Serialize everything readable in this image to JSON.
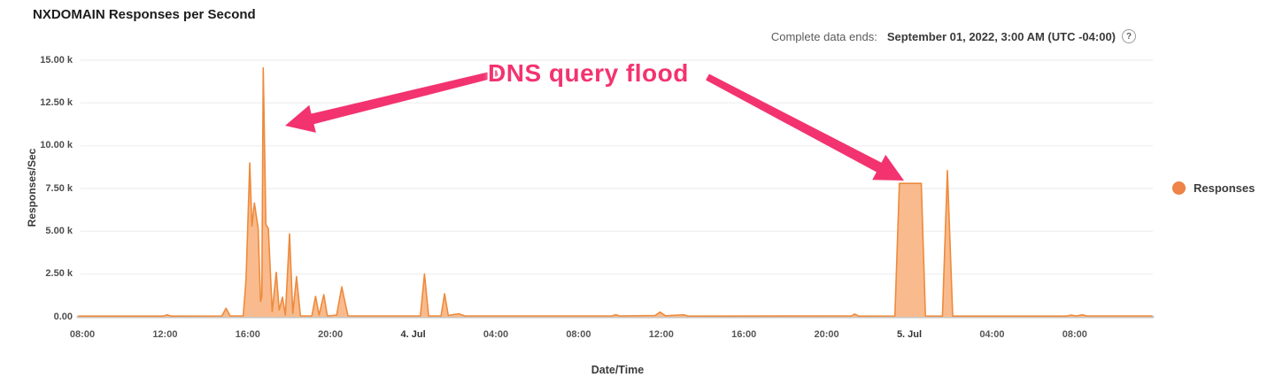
{
  "title": "NXDOMAIN Responses per Second",
  "header": {
    "complete_label": "Complete data ends:",
    "complete_value": "September 01, 2022, 3:00 AM (UTC -04:00)",
    "help_icon": "?"
  },
  "legend": {
    "label": "Responses",
    "color": "#ef8449"
  },
  "annotation": {
    "text": "DNS query flood",
    "color": "#f3336f",
    "arrows": [
      {
        "name": "left",
        "from": [
          562,
          83
        ],
        "to": [
          322,
          142
        ]
      },
      {
        "name": "right",
        "from": [
          799,
          87
        ],
        "to": [
          1021,
          204
        ]
      }
    ]
  },
  "chart_data": {
    "type": "area",
    "title": "NXDOMAIN Responses per Second",
    "xlabel": "Date/Time",
    "ylabel": "Responses/Sec",
    "ylim": [
      0,
      15000
    ],
    "grid": "horizontal-only",
    "legend_position": "right",
    "colors": {
      "fill": "#f9bb8d",
      "stroke": "#ee8a3c",
      "gridline": "#f1f1f1",
      "baseline": "#c6c6c6"
    },
    "y_ticks": [
      {
        "value": 0,
        "label": "0.00"
      },
      {
        "value": 2500,
        "label": "2.50 k"
      },
      {
        "value": 5000,
        "label": "5.00 k"
      },
      {
        "value": 7500,
        "label": "7.50 k"
      },
      {
        "value": 10000,
        "label": "10.00 k"
      },
      {
        "value": 12500,
        "label": "12.50 k"
      },
      {
        "value": 15000,
        "label": "15.00 k"
      }
    ],
    "x_ticks": [
      {
        "hour": 0,
        "label": "08:00",
        "bold": false
      },
      {
        "hour": 4,
        "label": "12:00",
        "bold": false
      },
      {
        "hour": 8,
        "label": "16:00",
        "bold": false
      },
      {
        "hour": 12,
        "label": "20:00",
        "bold": false
      },
      {
        "hour": 16,
        "label": "4. Jul",
        "bold": true
      },
      {
        "hour": 20,
        "label": "04:00",
        "bold": false
      },
      {
        "hour": 24,
        "label": "08:00",
        "bold": false
      },
      {
        "hour": 28,
        "label": "12:00",
        "bold": false
      },
      {
        "hour": 32,
        "label": "16:00",
        "bold": false
      },
      {
        "hour": 36,
        "label": "20:00",
        "bold": false
      },
      {
        "hour": 40,
        "label": "5. Jul",
        "bold": true
      },
      {
        "hour": 44,
        "label": "04:00",
        "bold": false
      },
      {
        "hour": 48,
        "label": "08:00",
        "bold": false
      }
    ],
    "x_unit": "hours since Jul 3 08:00",
    "series": [
      {
        "name": "Responses",
        "unit": "thousand responses/sec",
        "points": [
          [
            -0.2,
            0.04
          ],
          [
            3.9,
            0.04
          ],
          [
            4.1,
            0.12
          ],
          [
            4.3,
            0.04
          ],
          [
            6.75,
            0.05
          ],
          [
            6.95,
            0.5
          ],
          [
            7.15,
            0.05
          ],
          [
            7.78,
            0.05
          ],
          [
            7.92,
            2.2
          ],
          [
            8.1,
            9.0
          ],
          [
            8.2,
            5.3
          ],
          [
            8.32,
            6.65
          ],
          [
            8.5,
            5.2
          ],
          [
            8.62,
            0.9
          ],
          [
            8.68,
            1.2
          ],
          [
            8.75,
            14.55
          ],
          [
            8.88,
            5.4
          ],
          [
            9.0,
            5.15
          ],
          [
            9.18,
            0.3
          ],
          [
            9.38,
            2.6
          ],
          [
            9.52,
            0.4
          ],
          [
            9.68,
            1.15
          ],
          [
            9.82,
            0.1
          ],
          [
            10.02,
            4.85
          ],
          [
            10.18,
            0.2
          ],
          [
            10.36,
            2.35
          ],
          [
            10.55,
            0.05
          ],
          [
            11.1,
            0.05
          ],
          [
            11.28,
            1.2
          ],
          [
            11.45,
            0.1
          ],
          [
            11.68,
            1.3
          ],
          [
            11.85,
            0.05
          ],
          [
            12.3,
            0.1
          ],
          [
            12.55,
            1.75
          ],
          [
            12.85,
            0.05
          ],
          [
            16.35,
            0.05
          ],
          [
            16.55,
            2.5
          ],
          [
            16.75,
            0.05
          ],
          [
            17.35,
            0.05
          ],
          [
            17.52,
            1.35
          ],
          [
            17.7,
            0.08
          ],
          [
            18.2,
            0.18
          ],
          [
            18.5,
            0.05
          ],
          [
            25.6,
            0.05
          ],
          [
            25.8,
            0.12
          ],
          [
            26.0,
            0.05
          ],
          [
            27.7,
            0.08
          ],
          [
            27.95,
            0.28
          ],
          [
            28.2,
            0.06
          ],
          [
            29.1,
            0.12
          ],
          [
            29.3,
            0.04
          ],
          [
            37.2,
            0.05
          ],
          [
            37.35,
            0.16
          ],
          [
            37.55,
            0.04
          ],
          [
            39.3,
            0.05
          ],
          [
            39.52,
            7.8
          ],
          [
            40.58,
            7.8
          ],
          [
            40.78,
            0.05
          ],
          [
            41.6,
            0.04
          ],
          [
            41.84,
            8.55
          ],
          [
            42.1,
            0.04
          ],
          [
            47.6,
            0.04
          ],
          [
            47.8,
            0.1
          ],
          [
            48.1,
            0.05
          ],
          [
            48.35,
            0.12
          ],
          [
            48.6,
            0.05
          ],
          [
            51.75,
            0.05
          ]
        ]
      }
    ]
  }
}
